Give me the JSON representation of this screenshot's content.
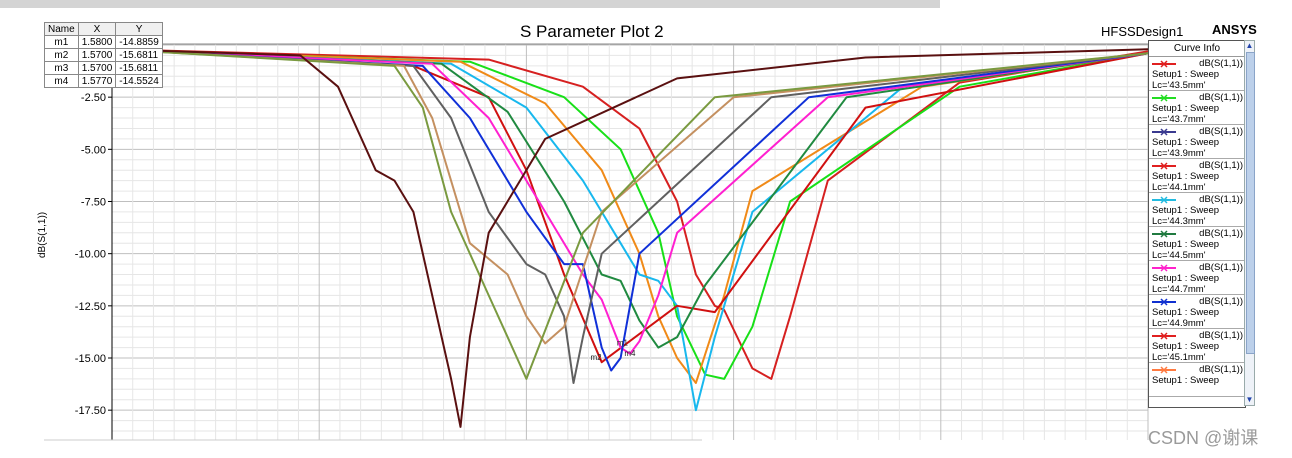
{
  "header": {
    "title": "S Parameter Plot 2",
    "design_name": "HFSSDesign1",
    "brand": "ANSYS"
  },
  "marker_table": {
    "headers": [
      "Name",
      "X",
      "Y"
    ],
    "rows": [
      [
        "m1",
        "1.5800",
        "-14.8859"
      ],
      [
        "m2",
        "1.5700",
        "-15.6811"
      ],
      [
        "m3",
        "1.5700",
        "-15.6811"
      ],
      [
        "m4",
        "1.5770",
        "-14.5524"
      ]
    ]
  },
  "legend": {
    "title": "Curve Info",
    "items": [
      {
        "line1": "dB(S(1,1))",
        "line2": "Setup1 : Sweep",
        "line3": "Lc='43.5mm'",
        "color": "#e02020"
      },
      {
        "line1": "dB(S(1,1))",
        "line2": "Setup1 : Sweep",
        "line3": "Lc='43.7mm'",
        "color": "#22dd22"
      },
      {
        "line1": "dB(S(1,1))",
        "line2": "Setup1 : Sweep",
        "line3": "Lc='43.9mm'",
        "color": "#3a3a90"
      },
      {
        "line1": "dB(S(1,1))",
        "line2": "Setup1 : Sweep",
        "line3": "Lc='44.1mm'",
        "color": "#e02020"
      },
      {
        "line1": "dB(S(1,1))",
        "line2": "Setup1 : Sweep",
        "line3": "Lc='44.3mm'",
        "color": "#22bbe0"
      },
      {
        "line1": "dB(S(1,1))",
        "line2": "Setup1 : Sweep",
        "line3": "Lc='44.5mm'",
        "color": "#207a40"
      },
      {
        "line1": "dB(S(1,1))",
        "line2": "Setup1 : Sweep",
        "line3": "Lc='44.7mm'",
        "color": "#ff22cc"
      },
      {
        "line1": "dB(S(1,1))",
        "line2": "Setup1 : Sweep",
        "line3": "Lc='44.9mm'",
        "color": "#1030d0"
      },
      {
        "line1": "dB(S(1,1))",
        "line2": "Setup1 : Sweep",
        "line3": "Lc='45.1mm'",
        "color": "#e02020"
      },
      {
        "line1": "dB(S(1,1))",
        "line2": "Setup1 : Sweep",
        "line3": "",
        "color": "#ff7a40"
      }
    ]
  },
  "markers_on_plot": [
    "m1",
    "m4",
    "m2"
  ],
  "watermark": "CSDN @谢课",
  "chart_data": {
    "type": "line",
    "title": "S Parameter Plot 2",
    "ylabel": "dB(S(1,1))",
    "xlabel": "",
    "ylim": [
      -18.5,
      0
    ],
    "xlim": [
      1.4,
      1.95
    ],
    "y_ticks": [
      "-2.50",
      "-5.00",
      "-7.50",
      "-10.00",
      "-12.50",
      "-15.00",
      "-17.50"
    ],
    "grid": true,
    "legend_position": "right",
    "series": [
      {
        "color": "#d62020",
        "x": [
          1.4,
          1.6,
          1.65,
          1.68,
          1.7,
          1.71,
          1.72,
          1.725,
          1.74,
          1.75,
          1.76,
          1.78,
          1.85,
          1.95
        ],
        "y": [
          -0.2,
          -0.7,
          -2,
          -4,
          -7.5,
          -11,
          -12.5,
          -12.7,
          -15.5,
          -16,
          -13,
          -6.5,
          -1.8,
          -0.3
        ]
      },
      {
        "color": "#18e018",
        "x": [
          1.4,
          1.59,
          1.64,
          1.67,
          1.69,
          1.7,
          1.715,
          1.725,
          1.74,
          1.76,
          1.85,
          1.95
        ],
        "y": [
          -0.2,
          -0.8,
          -2.5,
          -5,
          -9,
          -13,
          -15.8,
          -16,
          -13.5,
          -7.5,
          -2,
          -0.4
        ]
      },
      {
        "color": "#f08a18",
        "x": [
          1.4,
          1.585,
          1.63,
          1.66,
          1.68,
          1.69,
          1.7,
          1.71,
          1.725,
          1.74,
          1.83,
          1.95
        ],
        "y": [
          -0.2,
          -0.8,
          -2.8,
          -6,
          -10,
          -13,
          -15,
          -16.2,
          -12,
          -7,
          -2,
          -0.4
        ]
      },
      {
        "color": "#18b8ee",
        "x": [
          1.4,
          1.58,
          1.62,
          1.65,
          1.67,
          1.68,
          1.69,
          1.7,
          1.71,
          1.72,
          1.74,
          1.82,
          1.95
        ],
        "y": [
          -0.2,
          -0.9,
          -3,
          -6.5,
          -9.5,
          -11,
          -11.3,
          -12.5,
          -17.5,
          -14,
          -8,
          -2,
          -0.4
        ]
      },
      {
        "color": "#d01010",
        "x": [
          1.4,
          1.56,
          1.6,
          1.62,
          1.64,
          1.66,
          1.7,
          1.72,
          1.8,
          1.95
        ],
        "y": [
          -0.2,
          -1,
          -2.5,
          -6,
          -11,
          -15.2,
          -12.5,
          -12.8,
          -3,
          -0.4
        ]
      },
      {
        "color": "#208a40",
        "x": [
          1.4,
          1.575,
          1.61,
          1.64,
          1.66,
          1.67,
          1.68,
          1.69,
          1.7,
          1.715,
          1.79,
          1.95
        ],
        "y": [
          -0.2,
          -0.9,
          -3.2,
          -7.5,
          -11,
          -11.3,
          -13.2,
          -14.5,
          -14,
          -11.5,
          -2.5,
          -0.4
        ]
      },
      {
        "color": "#ff20d0",
        "x": [
          1.4,
          1.57,
          1.6,
          1.63,
          1.65,
          1.66,
          1.67,
          1.675,
          1.68,
          1.69,
          1.7,
          1.78,
          1.95
        ],
        "y": [
          -0.2,
          -0.9,
          -3.5,
          -8,
          -11,
          -12.2,
          -14.5,
          -14.8,
          -14.2,
          -12,
          -9,
          -2.5,
          -0.4
        ]
      },
      {
        "color": "#1030d8",
        "x": [
          1.4,
          1.565,
          1.59,
          1.62,
          1.64,
          1.65,
          1.66,
          1.665,
          1.67,
          1.68,
          1.77,
          1.95
        ],
        "y": [
          -0.2,
          -1,
          -3.5,
          -8,
          -10.5,
          -10.5,
          -14.5,
          -15.6,
          -15,
          -10,
          -2.5,
          -0.4
        ]
      },
      {
        "color": "#606060",
        "x": [
          1.4,
          1.56,
          1.58,
          1.6,
          1.62,
          1.63,
          1.64,
          1.645,
          1.65,
          1.66,
          1.75,
          1.95
        ],
        "y": [
          -0.2,
          -1,
          -3.5,
          -8,
          -10.5,
          -11,
          -13,
          -16.2,
          -14,
          -10,
          -2.5,
          -0.4
        ]
      },
      {
        "color": "#c49060",
        "x": [
          1.4,
          1.555,
          1.57,
          1.59,
          1.61,
          1.62,
          1.63,
          1.64,
          1.66,
          1.73,
          1.95
        ],
        "y": [
          -0.2,
          -1,
          -3.5,
          -9.5,
          -11,
          -13,
          -14.3,
          -13.5,
          -8,
          -2.5,
          -0.4
        ]
      },
      {
        "color": "#7a9a40",
        "x": [
          1.4,
          1.55,
          1.565,
          1.58,
          1.6,
          1.61,
          1.62,
          1.65,
          1.72,
          1.95
        ],
        "y": [
          -0.2,
          -1,
          -3,
          -8,
          -12,
          -14,
          -16,
          -9,
          -2.5,
          -0.4
        ]
      },
      {
        "color": "#5a1010",
        "x": [
          1.4,
          1.5,
          1.52,
          1.54,
          1.55,
          1.56,
          1.57,
          1.58,
          1.585,
          1.59,
          1.6,
          1.63,
          1.7,
          1.8,
          1.95
        ],
        "y": [
          -0.2,
          -0.5,
          -2,
          -6,
          -6.5,
          -8,
          -12,
          -16,
          -18.3,
          -14,
          -9,
          -4.5,
          -1.6,
          -0.6,
          -0.2
        ]
      }
    ]
  }
}
